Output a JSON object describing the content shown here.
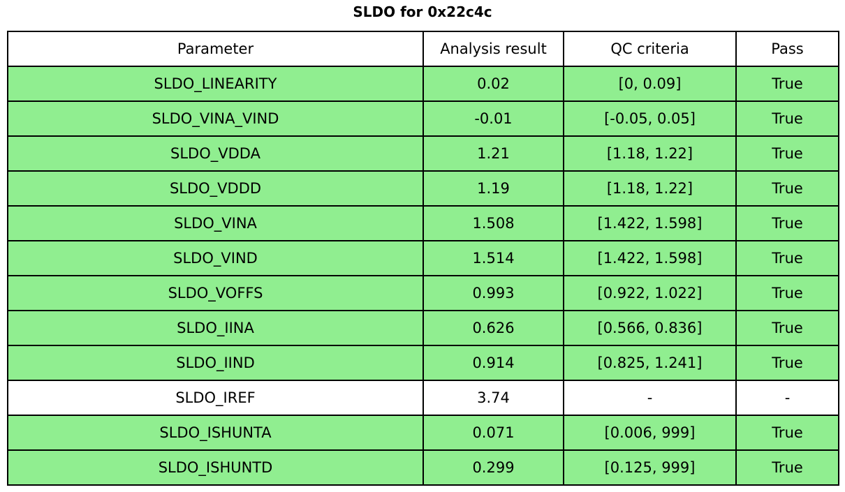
{
  "title": "SLDO for 0x22c4c",
  "colors": {
    "pass_row": "#90ee90",
    "neutral_row": "#ffffff",
    "header_row": "#ffffff",
    "border": "#000000",
    "text": "#000000",
    "background": "#ffffff"
  },
  "chart_data": {
    "type": "table",
    "title": "SLDO for 0x22c4c",
    "columns": [
      "Parameter",
      "Analysis result",
      "QC criteria",
      "Pass"
    ],
    "rows": [
      {
        "parameter": "SLDO_LINEARITY",
        "result": "0.02",
        "criteria": "[0, 0.09]",
        "pass": "True",
        "row_color": "#90ee90"
      },
      {
        "parameter": "SLDO_VINA_VIND",
        "result": "-0.01",
        "criteria": "[-0.05, 0.05]",
        "pass": "True",
        "row_color": "#90ee90"
      },
      {
        "parameter": "SLDO_VDDA",
        "result": "1.21",
        "criteria": "[1.18, 1.22]",
        "pass": "True",
        "row_color": "#90ee90"
      },
      {
        "parameter": "SLDO_VDDD",
        "result": "1.19",
        "criteria": "[1.18, 1.22]",
        "pass": "True",
        "row_color": "#90ee90"
      },
      {
        "parameter": "SLDO_VINA",
        "result": "1.508",
        "criteria": "[1.422, 1.598]",
        "pass": "True",
        "row_color": "#90ee90"
      },
      {
        "parameter": "SLDO_VIND",
        "result": "1.514",
        "criteria": "[1.422, 1.598]",
        "pass": "True",
        "row_color": "#90ee90"
      },
      {
        "parameter": "SLDO_VOFFS",
        "result": "0.993",
        "criteria": "[0.922, 1.022]",
        "pass": "True",
        "row_color": "#90ee90"
      },
      {
        "parameter": "SLDO_IINA",
        "result": "0.626",
        "criteria": "[0.566, 0.836]",
        "pass": "True",
        "row_color": "#90ee90"
      },
      {
        "parameter": "SLDO_IIND",
        "result": "0.914",
        "criteria": "[0.825, 1.241]",
        "pass": "True",
        "row_color": "#90ee90"
      },
      {
        "parameter": "SLDO_IREF",
        "result": "3.74",
        "criteria": "-",
        "pass": "-",
        "row_color": "#ffffff"
      },
      {
        "parameter": "SLDO_ISHUNTA",
        "result": "0.071",
        "criteria": "[0.006, 999]",
        "pass": "True",
        "row_color": "#90ee90"
      },
      {
        "parameter": "SLDO_ISHUNTD",
        "result": "0.299",
        "criteria": "[0.125, 999]",
        "pass": "True",
        "row_color": "#90ee90"
      }
    ]
  }
}
